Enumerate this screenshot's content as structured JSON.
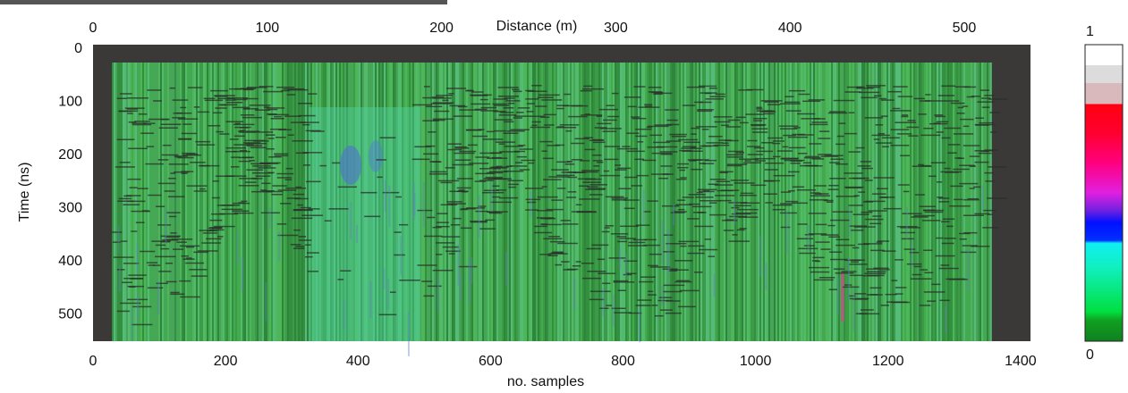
{
  "chart_data": {
    "type": "radargram",
    "x_label": "no. samples",
    "x2_label": "Distance (m)",
    "y_label": "Time (ns)",
    "xlim": [
      0,
      1415
    ],
    "xticks": [
      0,
      200,
      400,
      600,
      800,
      1000,
      1200,
      1400
    ],
    "x2lim": [
      0,
      538
    ],
    "x2ticks": [
      0,
      100,
      200,
      300,
      400,
      500
    ],
    "ylim": [
      0,
      550
    ],
    "yticks": [
      0,
      100,
      200,
      300,
      400,
      500
    ],
    "clim": [
      0,
      1
    ],
    "cticks": [
      1,
      0
    ]
  }
}
